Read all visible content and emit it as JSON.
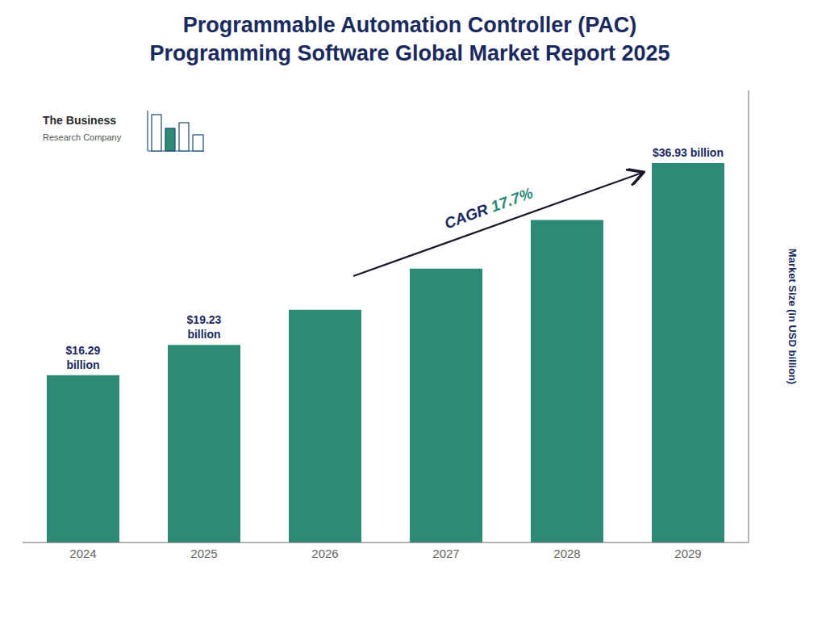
{
  "chart_data": {
    "type": "bar",
    "title": "Programmable Automation Controller (PAC)\nProgramming Software Global Market Report 2025",
    "categories": [
      "2024",
      "2025",
      "2026",
      "2027",
      "2028",
      "2029"
    ],
    "values": [
      16.29,
      19.23,
      22.65,
      26.66,
      31.39,
      36.93
    ],
    "value_labels": [
      "$16.29\nbillion",
      "$19.23\nbillion",
      null,
      null,
      null,
      "$36.93 billion"
    ],
    "color": "#2d8b75",
    "ylabel": "Market Size (in USD billion)",
    "ylim": [
      0,
      44
    ],
    "tick_labels": "x",
    "grid": false,
    "annotations": [
      "CAGR",
      "17.7%",
      "The Business",
      "Research Company"
    ]
  }
}
